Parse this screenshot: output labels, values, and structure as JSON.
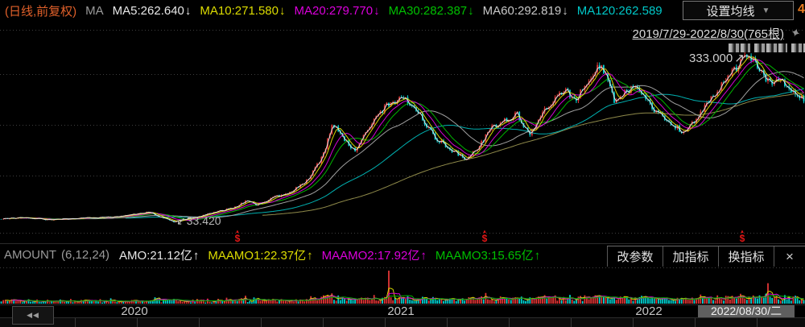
{
  "header": {
    "period_label": "(日线,前复权)",
    "indicator_name": "MA",
    "ma_items": [
      {
        "label": "MA5:262.640",
        "arrow": "↓",
        "color": "#e8e8e8"
      },
      {
        "label": "MA10:271.580",
        "arrow": "↓",
        "color": "#dcdc00"
      },
      {
        "label": "MA20:279.770",
        "arrow": "↓",
        "color": "#dc00dc"
      },
      {
        "label": "MA30:282.387",
        "arrow": "↓",
        "color": "#00c000"
      },
      {
        "label": "MA60:292.819",
        "arrow": "↓",
        "color": "#c8c8c8"
      },
      {
        "label": "MA120:262.589",
        "arrow": "",
        "color": "#00c8c8"
      }
    ],
    "settings_button": "设置均线",
    "settings_arrow": "▼",
    "clipped_edge_char": "4"
  },
  "chart_header": {
    "range_label": "2019/7/29-2022/8/30(765根)",
    "pin_icon": "✦"
  },
  "annotations": {
    "high": {
      "text": "333.000",
      "arrow": "↗"
    },
    "low": {
      "text": "33.420",
      "arrow": "↙"
    }
  },
  "indicator_bar": {
    "name": "AMOUNT",
    "params": "(6,12,24)",
    "items": [
      {
        "label": "AMO:21.12亿",
        "arrow": "↑",
        "color": "#e8e8e8"
      },
      {
        "label": "MAAMO1:22.37亿",
        "arrow": "↑",
        "color": "#dcdc00"
      },
      {
        "label": "MAAMO2:17.92亿",
        "arrow": "↑",
        "color": "#dc00dc"
      },
      {
        "label": "MAAMO3:15.65亿",
        "arrow": "↑",
        "color": "#00c000"
      }
    ],
    "buttons": [
      "改参数",
      "加指标",
      "换指标"
    ],
    "close_icon": "×"
  },
  "timeline": {
    "rewind_icon": "◀◀",
    "labels": [
      {
        "text": "2020",
        "x": 0.167
      },
      {
        "text": "2021",
        "x": 0.498
      },
      {
        "text": "2022",
        "x": 0.806
      }
    ],
    "current_date": "2022/08/30/二"
  },
  "chart_data": {
    "type": "candlestick",
    "period": "daily",
    "adjustment": "前复权",
    "date_range": "2019/7/29-2022/8/30",
    "bar_count": 765,
    "price_high": 333.0,
    "price_low": 33.42,
    "ylim": [
      0,
      380
    ],
    "grid": "dotted-horizontal",
    "up_color": "#e23535",
    "down_color": "#00d2d2",
    "close_keypoints": [
      [
        0.0,
        40
      ],
      [
        0.03,
        42
      ],
      [
        0.06,
        38
      ],
      [
        0.1,
        41
      ],
      [
        0.14,
        43
      ],
      [
        0.175,
        49
      ],
      [
        0.185,
        53
      ],
      [
        0.195,
        45
      ],
      [
        0.215,
        34.5
      ],
      [
        0.24,
        42
      ],
      [
        0.27,
        53
      ],
      [
        0.29,
        59
      ],
      [
        0.307,
        72
      ],
      [
        0.318,
        63
      ],
      [
        0.34,
        77
      ],
      [
        0.36,
        87
      ],
      [
        0.38,
        105
      ],
      [
        0.4,
        148
      ],
      [
        0.413,
        205
      ],
      [
        0.425,
        183
      ],
      [
        0.44,
        158
      ],
      [
        0.455,
        190
      ],
      [
        0.47,
        225
      ],
      [
        0.488,
        246
      ],
      [
        0.505,
        250
      ],
      [
        0.52,
        225
      ],
      [
        0.54,
        183
      ],
      [
        0.56,
        162
      ],
      [
        0.578,
        145
      ],
      [
        0.592,
        158
      ],
      [
        0.61,
        197
      ],
      [
        0.628,
        211
      ],
      [
        0.643,
        222
      ],
      [
        0.658,
        186
      ],
      [
        0.673,
        222
      ],
      [
        0.69,
        253
      ],
      [
        0.703,
        264
      ],
      [
        0.716,
        246
      ],
      [
        0.73,
        281
      ],
      [
        0.744,
        309
      ],
      [
        0.753,
        296
      ],
      [
        0.765,
        242
      ],
      [
        0.778,
        264
      ],
      [
        0.79,
        270
      ],
      [
        0.803,
        253
      ],
      [
        0.815,
        228
      ],
      [
        0.833,
        208
      ],
      [
        0.85,
        190
      ],
      [
        0.866,
        214
      ],
      [
        0.882,
        246
      ],
      [
        0.898,
        274
      ],
      [
        0.913,
        298
      ],
      [
        0.93,
        326
      ],
      [
        0.94,
        312
      ],
      [
        0.95,
        288
      ],
      [
        0.96,
        277
      ],
      [
        0.97,
        286
      ],
      [
        0.982,
        267
      ],
      [
        0.992,
        256
      ],
      [
        1.0,
        248
      ]
    ],
    "ma_series": [
      {
        "name": "MA5",
        "window": 5,
        "color": "#e0e0e0"
      },
      {
        "name": "MA10",
        "window": 10,
        "color": "#d6d600"
      },
      {
        "name": "MA20",
        "window": 20,
        "color": "#d400d4"
      },
      {
        "name": "MA30",
        "window": 30,
        "color": "#00b400"
      },
      {
        "name": "MA60",
        "window": 60,
        "color": "#a0a0a0"
      },
      {
        "name": "MA120",
        "window": 120,
        "color": "#00b0b0"
      },
      {
        "name": "MA250",
        "window": 250,
        "color": "#8f8a4a"
      }
    ],
    "volume": {
      "indicator": "AMOUNT",
      "params": [
        6,
        12,
        24
      ],
      "amo_last": "21.12亿",
      "ma_last": [
        "22.37亿",
        "17.92亿",
        "15.65亿"
      ],
      "ma_colors": [
        "#d6d600",
        "#d400d4",
        "#00b400"
      ],
      "spikes": [
        {
          "t": 0.482,
          "scale": 5.2
        },
        {
          "t": 0.956,
          "scale": 4.3
        }
      ]
    },
    "event_markers": {
      "symbol": "$",
      "color": "#e01616",
      "t": [
        0.295,
        0.602,
        0.922
      ]
    }
  }
}
